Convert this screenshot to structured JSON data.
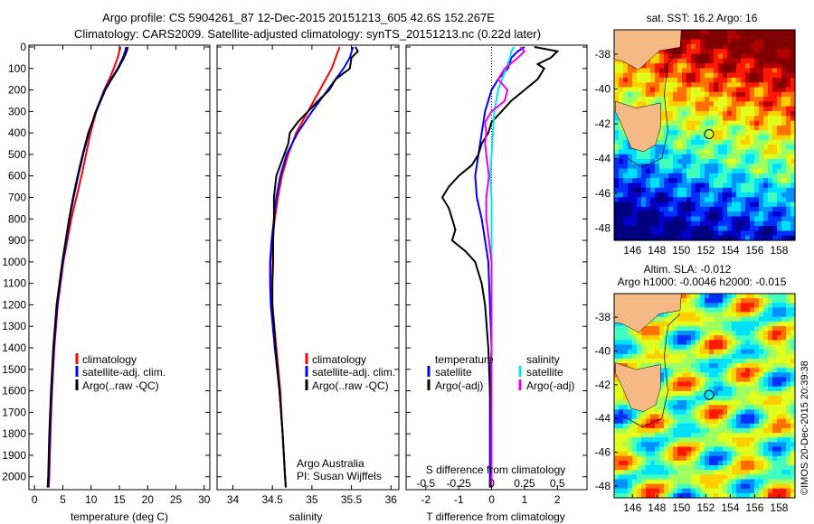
{
  "header": {
    "line1": "Argo profile: CS 5904261_87 12-Dec-2015 20151213_605 42.6S 152.267E",
    "line2": "Climatology: CARS2009. Satellite-adjusted climatology: synTS_20151213.nc (0.22d later)"
  },
  "colors": {
    "climatology": "#ff0000",
    "satellite": "#0000ff",
    "argo": "#000000",
    "sal_satellite": "#00e5ee",
    "sal_argo": "#ee00ee"
  },
  "chart_data": [
    {
      "type": "line",
      "name": "temperature",
      "xlabel": "temperature (deg C)",
      "ylabel": "",
      "xlim": [
        -1,
        31
      ],
      "ylim": [
        2060,
        0
      ],
      "xticks": [
        0,
        5,
        10,
        15,
        20,
        25,
        30
      ],
      "yticks": [
        0,
        100,
        200,
        300,
        400,
        500,
        600,
        700,
        800,
        900,
        1000,
        1100,
        1200,
        1300,
        1400,
        1500,
        1600,
        1700,
        1800,
        1900,
        2000
      ],
      "legend": [
        "climatology",
        "satellite-adj. clim.",
        "Argo(..raw -QC)"
      ],
      "series": [
        {
          "name": "climatology",
          "y": [
            0,
            20,
            50,
            100,
            150,
            200,
            300,
            400,
            500,
            600,
            700,
            800,
            900,
            1000,
            1200,
            1400,
            1600,
            1800,
            2000,
            2050
          ],
          "x": [
            15.2,
            15.0,
            14.7,
            14.0,
            13.2,
            12.3,
            10.9,
            9.9,
            9.1,
            8.3,
            7.4,
            6.5,
            5.8,
            5.1,
            4.1,
            3.5,
            3.1,
            2.8,
            2.6,
            2.5
          ]
        },
        {
          "name": "satellite",
          "y": [
            0,
            20,
            50,
            100,
            150,
            200,
            300,
            400,
            500,
            600,
            700,
            800,
            900,
            1000,
            1200,
            1400,
            1600,
            1800,
            2000,
            2050
          ],
          "x": [
            16.2,
            16.0,
            15.6,
            14.7,
            13.5,
            12.4,
            10.8,
            9.6,
            8.6,
            7.7,
            6.9,
            6.2,
            5.6,
            5.0,
            4.0,
            3.4,
            3.0,
            2.7,
            2.5,
            2.4
          ]
        },
        {
          "name": "argo",
          "y": [
            0,
            20,
            50,
            100,
            150,
            200,
            300,
            400,
            500,
            600,
            700,
            800,
            900,
            1000,
            1200,
            1400,
            1600,
            1800,
            2000,
            2050
          ],
          "x": [
            16.5,
            16.3,
            15.8,
            14.8,
            13.6,
            12.5,
            10.9,
            9.5,
            8.5,
            7.6,
            6.8,
            6.1,
            5.5,
            4.9,
            3.9,
            3.3,
            2.9,
            2.6,
            2.4,
            2.3
          ]
        }
      ]
    },
    {
      "type": "line",
      "name": "salinity",
      "xlabel": "salinity",
      "ylabel": "",
      "xlim": [
        33.8,
        36.1
      ],
      "ylim": [
        2060,
        0
      ],
      "xticks": [
        34,
        34.5,
        35,
        35.5,
        36
      ],
      "legend": [
        "climatology",
        "satellite-adj. clim.",
        "Argo(..raw -QC)"
      ],
      "annotation": [
        "Argo Australia",
        "PI: Susan Wijffels"
      ],
      "series": [
        {
          "name": "climatology",
          "y": [
            0,
            50,
            100,
            200,
            300,
            400,
            500,
            600,
            700,
            800,
            900,
            1000,
            1100,
            1200,
            1400,
            1600,
            1800,
            2000,
            2050
          ],
          "x": [
            35.35,
            35.3,
            35.25,
            35.1,
            34.95,
            34.8,
            34.7,
            34.62,
            34.57,
            34.53,
            34.5,
            34.48,
            34.48,
            34.5,
            34.55,
            34.6,
            34.63,
            34.66,
            34.67
          ]
        },
        {
          "name": "satellite",
          "y": [
            0,
            50,
            100,
            200,
            300,
            400,
            500,
            600,
            700,
            800,
            900,
            1000,
            1100,
            1200,
            1400,
            1600,
            1800,
            2000,
            2050
          ],
          "x": [
            35.52,
            35.48,
            35.4,
            35.2,
            35.0,
            34.82,
            34.68,
            34.6,
            34.55,
            34.52,
            34.49,
            34.47,
            34.47,
            34.48,
            34.53,
            34.59,
            34.63,
            34.66,
            34.67
          ]
        },
        {
          "name": "argo",
          "y": [
            0,
            20,
            50,
            100,
            150,
            200,
            250,
            300,
            350,
            400,
            450,
            500,
            600,
            700,
            800,
            900,
            1000,
            1100,
            1200,
            1400,
            1600,
            1800,
            2000,
            2050
          ],
          "x": [
            35.55,
            35.58,
            35.5,
            35.48,
            35.3,
            35.22,
            35.08,
            34.95,
            34.82,
            34.72,
            34.7,
            34.65,
            34.55,
            34.52,
            34.52,
            34.51,
            34.51,
            34.5,
            34.5,
            34.54,
            34.59,
            34.63,
            34.66,
            34.67
          ]
        }
      ]
    },
    {
      "type": "line",
      "name": "difference",
      "xlabel": "T difference from climatology",
      "xlabel_top": "S difference from climatology",
      "xlim": [
        -2.6,
        2.9
      ],
      "ylim": [
        2060,
        0
      ],
      "xticks": [
        -2,
        -1,
        0,
        1,
        2
      ],
      "xticks_sal": [
        -0.5,
        -0.25,
        0,
        0.25,
        0.5
      ],
      "legend_temperature": {
        "title": "temperature",
        "items": [
          "satellite",
          "Argo(-adj)"
        ]
      },
      "legend_salinity": {
        "title": "salinity",
        "items": [
          "satellite",
          "Argo(-adj)"
        ]
      },
      "series": [
        {
          "name": "temperature satellite",
          "y": [
            0,
            20,
            50,
            100,
            150,
            200,
            300,
            400,
            500,
            600,
            700,
            800,
            900,
            1000,
            1200,
            1400,
            1600,
            1800,
            2000,
            2050
          ],
          "x": [
            1.0,
            0.8,
            0.6,
            0.5,
            0.2,
            0.0,
            -0.2,
            -0.3,
            -0.4,
            -0.5,
            -0.45,
            -0.3,
            -0.2,
            -0.1,
            -0.05,
            0.0,
            -0.05,
            -0.05,
            -0.05,
            -0.05
          ]
        },
        {
          "name": "temperature argo",
          "y": [
            0,
            20,
            50,
            80,
            100,
            150,
            200,
            250,
            300,
            350,
            400,
            450,
            500,
            550,
            600,
            650,
            700,
            750,
            800,
            850,
            900,
            950,
            1000,
            1100,
            1200,
            1400,
            1600,
            1800,
            2000,
            2050
          ],
          "x": [
            1.3,
            2.0,
            1.8,
            1.4,
            1.6,
            1.4,
            1.0,
            0.6,
            0.3,
            0.0,
            -0.1,
            -0.3,
            -0.4,
            -0.6,
            -1.0,
            -1.3,
            -1.5,
            -1.3,
            -1.2,
            -1.1,
            -1.2,
            -0.8,
            -0.5,
            -0.3,
            -0.2,
            -0.1,
            -0.05,
            0.0,
            0.0,
            -0.05
          ]
        },
        {
          "name": "salinity satellite",
          "y": [
            0,
            20,
            50,
            100,
            150,
            200,
            300,
            400,
            500,
            600,
            700,
            800,
            900,
            1000,
            1200,
            1400,
            1600,
            1800,
            2000,
            2050
          ],
          "x": [
            0.17,
            0.15,
            0.14,
            0.11,
            0.08,
            0.05,
            0.02,
            0.01,
            0.0,
            -0.01,
            0.0,
            0.0,
            0.0,
            0.0,
            0.0,
            0.0,
            0.0,
            0.0,
            0.0,
            0.0
          ]
        },
        {
          "name": "salinity argo",
          "y": [
            0,
            20,
            50,
            100,
            150,
            200,
            250,
            300,
            350,
            400,
            450,
            500,
            600,
            700,
            800,
            900,
            1000,
            1100,
            1200,
            1400,
            1600,
            1800,
            2000,
            2050
          ],
          "x": [
            0.22,
            0.25,
            0.2,
            0.1,
            0.05,
            0.12,
            0.1,
            0.0,
            -0.05,
            -0.04,
            -0.05,
            -0.04,
            -0.02,
            -0.04,
            -0.04,
            -0.02,
            0.0,
            0.0,
            0.0,
            0.0,
            0.0,
            0.0,
            0.0,
            0.0
          ]
        }
      ]
    },
    {
      "type": "heatmap",
      "name": "sst_map",
      "title": "sat. SST: 16.2 Argo: 16",
      "xticks": [
        146,
        148,
        150,
        152,
        154,
        156,
        158
      ],
      "yticks": [
        -38,
        -40,
        -42,
        -44,
        -46,
        -48
      ],
      "xlim": [
        144.5,
        159.3
      ],
      "ylim": [
        -48.7,
        -36.6
      ],
      "marker": {
        "lon": 152.267,
        "lat": -42.6
      }
    },
    {
      "type": "heatmap",
      "name": "sla_map",
      "title": "Altim. SLA: -0.012",
      "subtitle": "Argo h1000: -0.0046 h2000: -0.015",
      "xticks": [
        146,
        148,
        150,
        152,
        154,
        156,
        158
      ],
      "yticks": [
        -38,
        -40,
        -42,
        -44,
        -46,
        -48
      ],
      "xlim": [
        144.5,
        159.3
      ],
      "ylim": [
        -48.7,
        -36.6
      ],
      "marker": {
        "lon": 152.267,
        "lat": -42.6
      }
    }
  ],
  "footer": {
    "credit": "©IMOS 20-Dec-2015 20:39:38"
  }
}
